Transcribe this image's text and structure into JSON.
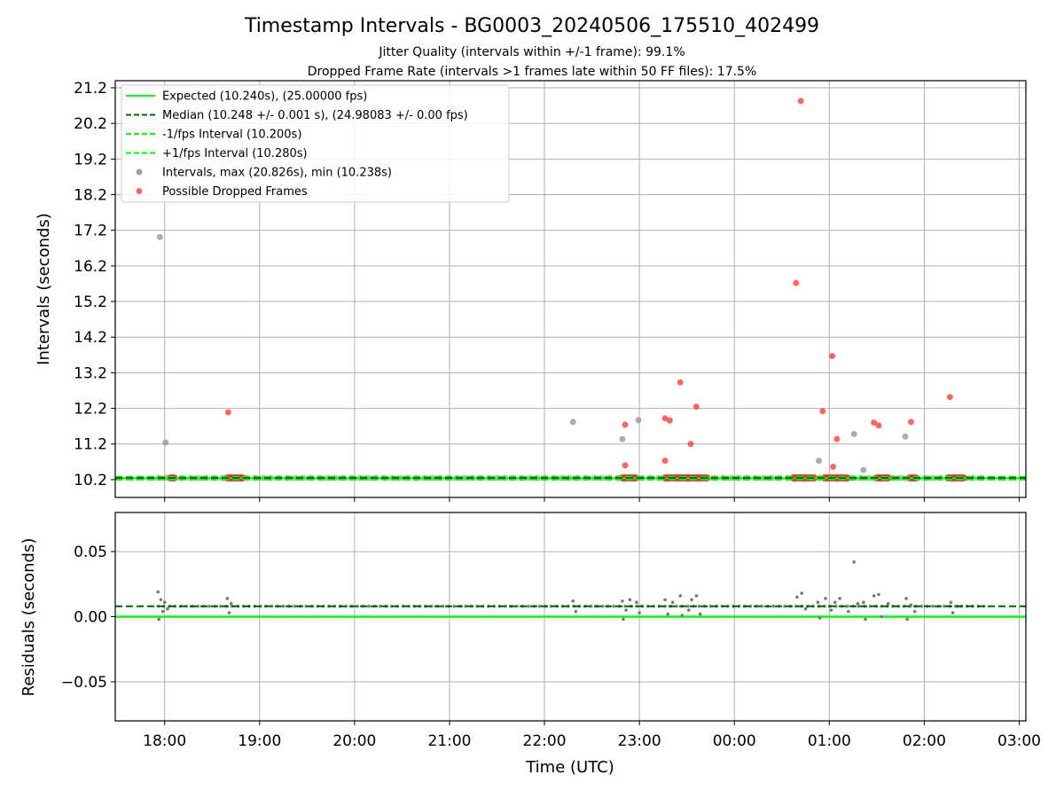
{
  "chart_data": [
    {
      "type": "scatter",
      "title": "Timestamp Intervals - BG0003_20240506_175510_402499",
      "subtitle_1": "Jitter Quality (intervals within +/-1 frame): 99.1%",
      "subtitle_2": "Dropped Frame Rate (intervals >1 frames late within 50 FF files): 17.5%",
      "ylabel": "Intervals (seconds)",
      "xlim_hours": [
        17.48,
        27.07
      ],
      "ylim": [
        9.7,
        21.4
      ],
      "y_ticks": [
        "10.2",
        "11.2",
        "12.2",
        "13.2",
        "14.2",
        "15.2",
        "16.2",
        "17.2",
        "18.2",
        "19.2",
        "20.2",
        "21.2"
      ],
      "grid": true,
      "legend_position": "upper-left",
      "legend": [
        {
          "label": "Expected (10.240s), (25.00000 fps)",
          "style": "solid",
          "color": "#00ff00"
        },
        {
          "label": "Median (10.248 +/- 0.001 s), (24.98083 +/- 0.00 fps)",
          "style": "dashed",
          "color": "#006400"
        },
        {
          "label": "-1/fps Interval (10.200s)",
          "style": "dashed",
          "color": "#00ff00"
        },
        {
          "label": "+1/fps Interval (10.280s)",
          "style": "dashed",
          "color": "#00ff00"
        },
        {
          "label": "Intervals, max (20.826s), min (10.238s)",
          "style": "dot",
          "color": "#808080"
        },
        {
          "label": "Possible Dropped Frames",
          "style": "dot",
          "color": "#ff3333"
        }
      ],
      "reference_lines": {
        "expected": 10.24,
        "median": 10.248,
        "minus_one_frame": 10.2,
        "plus_one_frame": 10.28
      },
      "data_time_range_hours": [
        17.93,
        26.65
      ],
      "baseline_interval": 10.248,
      "series": [
        {
          "name": "Intervals, max (20.826s), min (10.238s)",
          "color": "#999999",
          "points": [
            [
              17.95,
              17.01
            ],
            [
              18.01,
              11.24
            ],
            [
              22.3,
              11.82
            ],
            [
              22.82,
              11.34
            ],
            [
              22.99,
              11.87
            ],
            [
              24.89,
              10.73
            ],
            [
              25.26,
              11.48
            ],
            [
              25.36,
              10.47
            ],
            [
              25.8,
              11.41
            ]
          ]
        },
        {
          "name": "Possible Dropped Frames",
          "color": "#ff3333",
          "points": [
            [
              18.67,
              12.09
            ],
            [
              22.85,
              11.74
            ],
            [
              22.85,
              10.6
            ],
            [
              23.27,
              11.92
            ],
            [
              23.27,
              10.73
            ],
            [
              23.32,
              11.86
            ],
            [
              23.43,
              12.93
            ],
            [
              23.54,
              11.2
            ],
            [
              23.6,
              12.25
            ],
            [
              24.65,
              15.72
            ],
            [
              24.7,
              20.83
            ],
            [
              24.93,
              12.12
            ],
            [
              25.03,
              13.67
            ],
            [
              25.04,
              10.56
            ],
            [
              25.08,
              11.34
            ],
            [
              25.47,
              11.8
            ],
            [
              25.52,
              11.72
            ],
            [
              25.86,
              11.82
            ],
            [
              26.27,
              12.52
            ]
          ]
        }
      ],
      "dropped_frame_clusters_hours": [
        [
          18.06,
          18.1
        ],
        [
          18.66,
          18.82
        ],
        [
          22.82,
          22.96
        ],
        [
          23.27,
          23.72
        ],
        [
          24.62,
          24.85
        ],
        [
          24.95,
          25.2
        ],
        [
          25.5,
          25.63
        ],
        [
          25.85,
          25.92
        ],
        [
          26.25,
          26.42
        ]
      ]
    },
    {
      "type": "scatter",
      "ylabel": "Residuals (seconds)",
      "xlabel": "Time (UTC)",
      "x_ticks": [
        "18:00",
        "19:00",
        "20:00",
        "21:00",
        "22:00",
        "23:00",
        "00:00",
        "01:00",
        "02:00",
        "03:00"
      ],
      "y_ticks": [
        "0.05",
        "0.00",
        "−0.05"
      ],
      "ylim": [
        -0.08,
        0.08
      ],
      "xlim_hours": [
        17.48,
        27.07
      ],
      "grid": true,
      "reference_lines": {
        "expected_residual": 0.0,
        "median_residual": 0.008
      },
      "series": [
        {
          "name": "residuals",
          "color": "#777777",
          "points": [
            [
              17.93,
              0.019
            ],
            [
              17.94,
              -0.002
            ],
            [
              17.96,
              0.013
            ],
            [
              17.98,
              0.004
            ],
            [
              18.0,
              0.011
            ],
            [
              18.03,
              0.006
            ],
            [
              18.66,
              0.014
            ],
            [
              18.68,
              0.003
            ],
            [
              18.7,
              0.01
            ],
            [
              22.3,
              0.012
            ],
            [
              22.33,
              0.004
            ],
            [
              22.82,
              0.012
            ],
            [
              22.83,
              -0.002
            ],
            [
              22.86,
              0.005
            ],
            [
              22.9,
              0.013
            ],
            [
              22.97,
              0.011
            ],
            [
              23.0,
              0.003
            ],
            [
              23.27,
              0.013
            ],
            [
              23.3,
              0.002
            ],
            [
              23.35,
              0.011
            ],
            [
              23.43,
              0.016
            ],
            [
              23.45,
              0.001
            ],
            [
              23.52,
              0.005
            ],
            [
              23.55,
              0.013
            ],
            [
              23.6,
              0.016
            ],
            [
              23.64,
              0.002
            ],
            [
              24.66,
              0.015
            ],
            [
              24.71,
              0.018
            ],
            [
              24.75,
              0.006
            ],
            [
              24.88,
              0.011
            ],
            [
              24.9,
              -0.001
            ],
            [
              24.96,
              0.014
            ],
            [
              25.02,
              0.005
            ],
            [
              25.06,
              0.011
            ],
            [
              25.11,
              0.014
            ],
            [
              25.2,
              0.004
            ],
            [
              25.26,
              0.042
            ],
            [
              25.3,
              0.01
            ],
            [
              25.36,
              0.011
            ],
            [
              25.38,
              -0.002
            ],
            [
              25.47,
              0.016
            ],
            [
              25.52,
              0.017
            ],
            [
              25.55,
              0.0
            ],
            [
              25.62,
              0.01
            ],
            [
              25.81,
              0.014
            ],
            [
              25.82,
              -0.002
            ],
            [
              25.86,
              0.009
            ],
            [
              25.9,
              0.004
            ],
            [
              26.28,
              0.011
            ],
            [
              26.3,
              0.003
            ],
            [
              26.35,
              0.008
            ]
          ]
        }
      ]
    }
  ]
}
